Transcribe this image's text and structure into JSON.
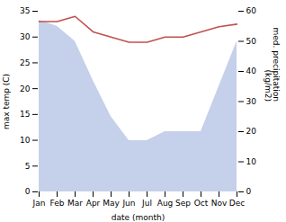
{
  "chart_data": {
    "type": "line",
    "xlabel": "date (month)",
    "ylabel": "max temp (C)",
    "y2label": "med. precipitation\n(kg/m2)",
    "categories": [
      "Jan",
      "Feb",
      "Mar",
      "Apr",
      "May",
      "Jun",
      "Jul",
      "Aug",
      "Sep",
      "Oct",
      "Nov",
      "Dec"
    ],
    "ylim": [
      0,
      35
    ],
    "yticks": [
      0,
      5,
      10,
      15,
      20,
      25,
      30,
      35
    ],
    "y2lim": [
      0,
      60
    ],
    "y2ticks": [
      0,
      10,
      20,
      30,
      40,
      50,
      60
    ],
    "series": [
      {
        "type": "line",
        "color": "#c0504d",
        "values": [
          33,
          33,
          34,
          31,
          30,
          29,
          29,
          30,
          30,
          31,
          32,
          32.5
        ]
      },
      {
        "type": "area",
        "axis": "y2",
        "color": "#c5d0ea",
        "values": [
          57,
          55,
          50,
          37,
          25,
          17,
          17,
          20,
          20,
          20,
          35,
          50
        ]
      }
    ]
  }
}
